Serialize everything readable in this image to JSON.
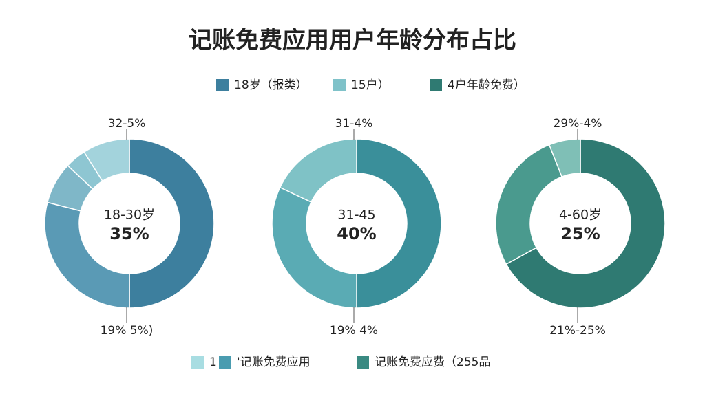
{
  "title": "记账免费应用用户年龄分布占比",
  "legend_top": [
    {
      "label": "18岁（报类）",
      "color": "#3d7f9e"
    },
    {
      "label": "15户）",
      "color": "#7fc2c9"
    },
    {
      "label": "4户年龄免费）",
      "color": "#2f7a72"
    }
  ],
  "legend_bottom": [
    {
      "label": "1",
      "color": "#a8dde2"
    },
    {
      "label": "'记账免费应用",
      "color": "#4a9cb0"
    },
    {
      "label": "记账免费应费（255品",
      "color": "#3a8a82"
    }
  ],
  "chart_data": [
    {
      "type": "donut",
      "center_label": "18-30岁",
      "center_value": "35%",
      "top_note": "32-5%",
      "bottom_note": "19%  5%)",
      "values": [
        50,
        29,
        8,
        4,
        9
      ],
      "colors": [
        "#3d7f9e",
        "#5a9ab5",
        "#7fb7c8",
        "#8ec6d2",
        "#a3d3dc"
      ]
    },
    {
      "type": "donut",
      "center_label": "31-45",
      "center_value": "40%",
      "top_note": "31-4%",
      "bottom_note": "19%  4%",
      "values": [
        50,
        32,
        18
      ],
      "colors": [
        "#3a8f9a",
        "#5aabb4",
        "#7fc2c6"
      ]
    },
    {
      "type": "donut",
      "center_label": "4-60岁",
      "center_value": "25%",
      "top_note": "29%-4%",
      "bottom_note": "21%-25%",
      "values": [
        67,
        27,
        6
      ],
      "colors": [
        "#2f7a72",
        "#4a9a8e",
        "#7fbfb6"
      ]
    }
  ]
}
